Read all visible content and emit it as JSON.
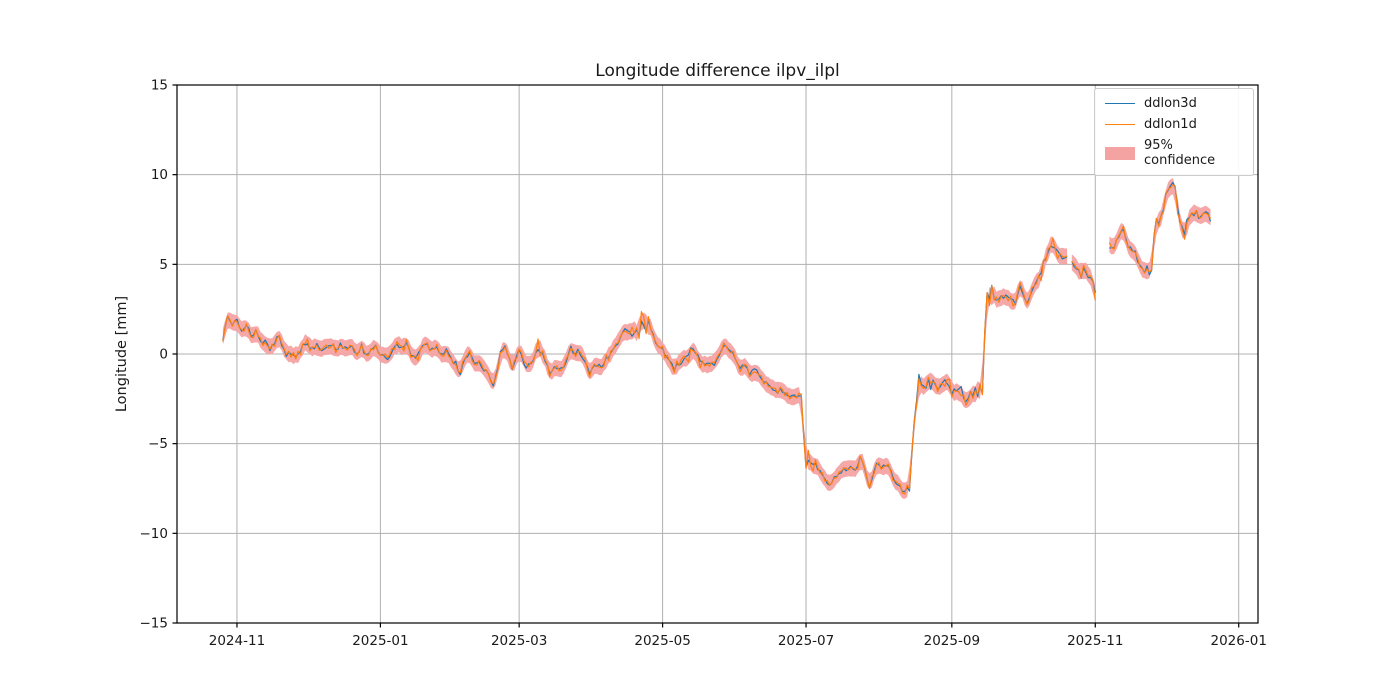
{
  "figure": {
    "background": "#ffffff"
  },
  "chart_data": {
    "type": "line",
    "title": "Longitude difference ilpv_ilpl",
    "xlabel": "",
    "ylabel": "Longitude [mm]",
    "grid": true,
    "x_axis": {
      "unit": "date",
      "epoch": "2024-11-01",
      "tick_days": [
        0,
        61,
        120,
        181,
        242,
        304,
        365,
        426
      ],
      "tick_labels": [
        "2024-11",
        "2025-01",
        "2025-03",
        "2025-05",
        "2025-07",
        "2025-09",
        "2025-11",
        "2026-01"
      ],
      "xlim_days": [
        -25.5,
        434.2
      ]
    },
    "y_axis": {
      "ylim": [
        -15,
        15
      ],
      "tick_values": [
        -15,
        -10,
        -5,
        0,
        5,
        10,
        15
      ],
      "tick_labels": [
        "−15",
        "−10",
        "−5",
        "0",
        "5",
        "10",
        "15"
      ]
    },
    "legend": {
      "position": "upper right",
      "entries": [
        "ddlon3d",
        "ddlon1d",
        "95% confidence"
      ]
    },
    "colors": {
      "ddlon3d": "#1f77b4",
      "ddlon1d": "#ff7f0e",
      "confidence_band": "#f5a2a2",
      "grid": "#b0b0b0",
      "spine": "#000000",
      "text": "#1a1a1a"
    },
    "series": {
      "description": "Two nearly identical noisy daily series (ddlon3d, ddlon1d) with a 95% confidence band around them; values in mm, time in days since 2024-11-01.",
      "band_halfwidth_mm": 0.45,
      "data_gaps_days": [
        [
          353.2,
          354.6
        ],
        [
          365.2,
          370.8
        ]
      ],
      "reconstruction": {
        "sample_step_days": 1,
        "t_start": -6,
        "t_end": 414,
        "seed": 1337,
        "shared_noise_mm": 0.16,
        "extra_noise_1d_mm": 0.18,
        "spike_probability": 0.12,
        "spike_amplitude_mm": 0.45
      },
      "trend_keypoints": [
        [
          -6,
          0.9
        ],
        [
          -4,
          2.1
        ],
        [
          -2,
          1.6
        ],
        [
          0,
          1.9
        ],
        [
          2,
          1.3
        ],
        [
          4,
          1.7
        ],
        [
          6,
          1.0
        ],
        [
          8,
          1.4
        ],
        [
          10,
          0.6
        ],
        [
          12,
          0.9
        ],
        [
          14,
          0.3
        ],
        [
          16,
          0.7
        ],
        [
          18,
          1.0
        ],
        [
          19,
          0.4
        ],
        [
          21,
          -0.1
        ],
        [
          23,
          0.0
        ],
        [
          25,
          -0.2
        ],
        [
          28,
          0.5
        ],
        [
          30,
          0.6
        ],
        [
          32,
          0.3
        ],
        [
          34,
          0.5
        ],
        [
          36,
          0.2
        ],
        [
          38,
          0.4
        ],
        [
          40,
          0.6
        ],
        [
          42,
          0.3
        ],
        [
          44,
          0.5
        ],
        [
          47,
          0.2
        ],
        [
          49,
          0.4
        ],
        [
          51,
          0.1
        ],
        [
          53,
          0.4
        ],
        [
          55,
          0.0
        ],
        [
          57,
          0.3
        ],
        [
          59,
          0.4
        ],
        [
          61,
          0.0
        ],
        [
          64,
          -0.4
        ],
        [
          66,
          0.2
        ],
        [
          68,
          0.5
        ],
        [
          70,
          0.3
        ],
        [
          72,
          0.5
        ],
        [
          74,
          0.0
        ],
        [
          76,
          -0.2
        ],
        [
          78,
          0.4
        ],
        [
          80,
          0.6
        ],
        [
          83,
          0.2
        ],
        [
          85,
          0.4
        ],
        [
          87,
          -0.1
        ],
        [
          89,
          0.2
        ],
        [
          91,
          -0.3
        ],
        [
          93,
          -0.5
        ],
        [
          95,
          -1.1
        ],
        [
          97,
          -0.2
        ],
        [
          99,
          0.1
        ],
        [
          101,
          -0.4
        ],
        [
          103,
          -0.5
        ],
        [
          105,
          -0.8
        ],
        [
          107,
          -1.2
        ],
        [
          109,
          -1.8
        ],
        [
          110.5,
          -0.9
        ],
        [
          112,
          0.0
        ],
        [
          114,
          0.5
        ],
        [
          115,
          0.1
        ],
        [
          117,
          -0.7
        ],
        [
          120,
          0.3
        ],
        [
          123,
          -0.9
        ],
        [
          126,
          -0.3
        ],
        [
          128,
          0.2
        ],
        [
          130,
          -0.1
        ],
        [
          131,
          -0.5
        ],
        [
          133,
          -1.0
        ],
        [
          135,
          -0.6
        ],
        [
          138,
          -0.8
        ],
        [
          140,
          -0.4
        ],
        [
          142,
          0.3
        ],
        [
          144,
          0.0
        ],
        [
          145,
          0.3
        ],
        [
          147,
          -0.2
        ],
        [
          149,
          -0.7
        ],
        [
          150,
          -1.0
        ],
        [
          152,
          -0.5
        ],
        [
          155,
          -0.7
        ],
        [
          157,
          -0.3
        ],
        [
          159,
          0.1
        ],
        [
          161,
          0.5
        ],
        [
          163,
          0.9
        ],
        [
          165,
          1.3
        ],
        [
          166,
          1.4
        ],
        [
          168,
          1.0
        ],
        [
          169,
          1.3
        ],
        [
          171,
          1.1
        ],
        [
          172,
          1.9
        ],
        [
          174,
          1.3
        ],
        [
          175,
          1.8
        ],
        [
          177,
          1.2
        ],
        [
          178,
          0.8
        ],
        [
          180,
          0.4
        ],
        [
          182,
          0.0
        ],
        [
          184,
          -0.4
        ],
        [
          186,
          -0.8
        ],
        [
          188,
          -0.5
        ],
        [
          191,
          -0.2
        ],
        [
          193,
          0.4
        ],
        [
          195,
          0.1
        ],
        [
          197,
          -0.3
        ],
        [
          199,
          -0.7
        ],
        [
          201,
          -0.4
        ],
        [
          203,
          -0.6
        ],
        [
          205,
          -0.2
        ],
        [
          207,
          0.4
        ],
        [
          210,
          0.1
        ],
        [
          212,
          -0.3
        ],
        [
          214,
          -0.8
        ],
        [
          216,
          -0.5
        ],
        [
          218,
          -1.1
        ],
        [
          220,
          -0.8
        ],
        [
          222,
          -1.2
        ],
        [
          224,
          -1.6
        ],
        [
          227,
          -1.9
        ],
        [
          229,
          -2.2
        ],
        [
          231,
          -2.0
        ],
        [
          233,
          -2.3
        ],
        [
          235,
          -2.5
        ],
        [
          237,
          -2.3
        ],
        [
          239,
          -2.4
        ],
        [
          240,
          -2.5
        ],
        [
          241,
          -4.5
        ],
        [
          242,
          -6.3
        ],
        [
          243,
          -5.8
        ],
        [
          246,
          -6.2
        ],
        [
          248,
          -6.5
        ],
        [
          250,
          -7.0
        ],
        [
          252,
          -7.3
        ],
        [
          254,
          -6.9
        ],
        [
          256,
          -6.7
        ],
        [
          258,
          -6.5
        ],
        [
          260,
          -6.3
        ],
        [
          263,
          -6.6
        ],
        [
          265,
          -5.6
        ],
        [
          267,
          -6.4
        ],
        [
          269,
          -7.5
        ],
        [
          271,
          -6.4
        ],
        [
          272,
          -6.2
        ],
        [
          275,
          -6.3
        ],
        [
          277,
          -6.2
        ],
        [
          279,
          -7.0
        ],
        [
          282,
          -7.4
        ],
        [
          284,
          -7.7
        ],
        [
          285,
          -7.3
        ],
        [
          286,
          -7.8
        ],
        [
          287,
          -5.5
        ],
        [
          287.6,
          -3.4
        ],
        [
          288.3,
          -3.9
        ],
        [
          289.5,
          -1.5
        ],
        [
          290,
          -1.2
        ],
        [
          291,
          -1.7
        ],
        [
          293,
          -2.0
        ],
        [
          294,
          -1.5
        ],
        [
          295,
          -1.9
        ],
        [
          296,
          -1.6
        ],
        [
          298,
          -2.1
        ],
        [
          299,
          -1.8
        ],
        [
          300,
          -1.5
        ],
        [
          301,
          -1.3
        ],
        [
          303,
          -1.9
        ],
        [
          304,
          -2.2
        ],
        [
          305,
          -1.8
        ],
        [
          307,
          -2.1
        ],
        [
          308,
          -1.7
        ],
        [
          309,
          -2.3
        ],
        [
          310,
          -2.7
        ],
        [
          312,
          -2.1
        ],
        [
          313,
          -2.4
        ],
        [
          314,
          -2.0
        ],
        [
          315,
          -2.3
        ],
        [
          315.5,
          -0.7
        ],
        [
          316.3,
          -2.2
        ],
        [
          317,
          -2.4
        ],
        [
          317.6,
          -1.0
        ],
        [
          318.3,
          3.0
        ],
        [
          319,
          3.5
        ],
        [
          320,
          3.1
        ],
        [
          321,
          3.7
        ],
        [
          322,
          3.2
        ],
        [
          324,
          3.0
        ],
        [
          325,
          3.3
        ],
        [
          326,
          3.1
        ],
        [
          327,
          3.4
        ],
        [
          329,
          3.0
        ],
        [
          330,
          3.2
        ],
        [
          331,
          2.9
        ],
        [
          332,
          3.2
        ],
        [
          333,
          3.8
        ],
        [
          335,
          3.1
        ],
        [
          336,
          2.8
        ],
        [
          337,
          3.2
        ],
        [
          338,
          3.6
        ],
        [
          340,
          4.1
        ],
        [
          342,
          4.5
        ],
        [
          343,
          5.1
        ],
        [
          345,
          5.7
        ],
        [
          347,
          6.1
        ],
        [
          348,
          5.9
        ],
        [
          350,
          5.6
        ],
        [
          352,
          5.3
        ],
        [
          353,
          5.4
        ],
        [
          355,
          5.2
        ],
        [
          357,
          4.7
        ],
        [
          358,
          4.6
        ],
        [
          359,
          4.1
        ],
        [
          360,
          4.8
        ],
        [
          362,
          4.3
        ],
        [
          362.5,
          3.7
        ],
        [
          363,
          4.4
        ],
        [
          364,
          4.0
        ],
        [
          365,
          3.5
        ],
        [
          371,
          6.0
        ],
        [
          373,
          5.9
        ],
        [
          374,
          6.2
        ],
        [
          375,
          6.5
        ],
        [
          377,
          6.9
        ],
        [
          378,
          6.4
        ],
        [
          379,
          6.0
        ],
        [
          381,
          5.8
        ],
        [
          382,
          5.6
        ],
        [
          383,
          5.0
        ],
        [
          384,
          4.9
        ],
        [
          386,
          4.6
        ],
        [
          387,
          4.8
        ],
        [
          388,
          4.5
        ],
        [
          389,
          4.7
        ],
        [
          389.5,
          5.5
        ],
        [
          390.5,
          7.6
        ],
        [
          392,
          7.4
        ],
        [
          393,
          7.7
        ],
        [
          394,
          8.1
        ],
        [
          395,
          8.8
        ],
        [
          397,
          9.5
        ],
        [
          398,
          9.7
        ],
        [
          399,
          9.2
        ],
        [
          400,
          8.3
        ],
        [
          401,
          7.4
        ],
        [
          402,
          7.0
        ],
        [
          403,
          6.8
        ],
        [
          404,
          7.5
        ],
        [
          406,
          7.9
        ],
        [
          407,
          7.7
        ],
        [
          408,
          8.0
        ],
        [
          409,
          7.6
        ],
        [
          411,
          7.9
        ],
        [
          412,
          7.8
        ],
        [
          413,
          7.7
        ],
        [
          414,
          7.3
        ]
      ]
    }
  }
}
